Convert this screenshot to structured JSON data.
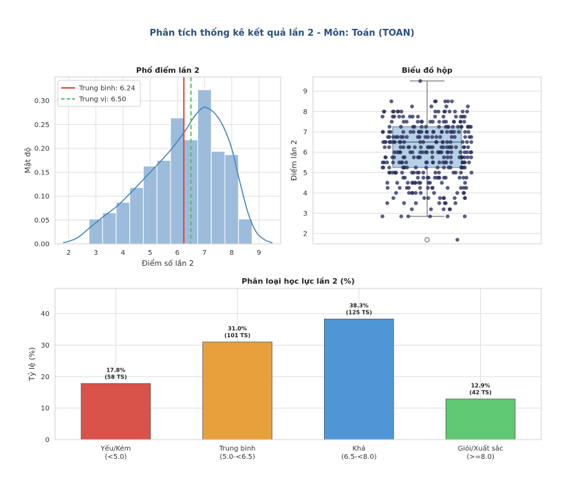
{
  "suptitle": "Phân tích thống kê kết quả lần 2 - Môn: Toán (TOAN)",
  "chart_data": [
    {
      "type": "bar",
      "subtype": "histogram-kde",
      "title": "Phổ điểm lần 2",
      "xlabel": "Điểm số lần 2",
      "ylabel": "Mật độ",
      "xlim": [
        1.5,
        9.8
      ],
      "ylim": [
        0,
        0.35
      ],
      "xticks": [
        2,
        3,
        4,
        5,
        6,
        7,
        8,
        9
      ],
      "yticks": [
        0.0,
        0.05,
        0.1,
        0.15,
        0.2,
        0.25,
        0.3
      ],
      "bin_edges": [
        2.75,
        3.25,
        3.75,
        4.25,
        4.75,
        5.25,
        5.75,
        6.25,
        6.75,
        7.25,
        7.75,
        8.25,
        8.75
      ],
      "values": [
        0.052,
        0.065,
        0.087,
        0.118,
        0.163,
        0.175,
        0.264,
        0.218,
        0.323,
        0.194,
        0.187,
        0.052
      ],
      "bar_color": "#9dbcdb",
      "kde": {
        "x": [
          1.8,
          2.3,
          2.8,
          3.3,
          3.8,
          4.3,
          4.8,
          5.3,
          5.8,
          6.3,
          6.6,
          6.9,
          7.1,
          7.4,
          7.7,
          8.0,
          8.3,
          8.6,
          8.9,
          9.2,
          9.5
        ],
        "y": [
          0.002,
          0.012,
          0.035,
          0.058,
          0.08,
          0.108,
          0.138,
          0.168,
          0.2,
          0.238,
          0.265,
          0.284,
          0.285,
          0.272,
          0.245,
          0.2,
          0.13,
          0.065,
          0.025,
          0.009,
          0.002
        ],
        "color": "#4a86b5"
      },
      "mean": {
        "value": 6.24,
        "label": "Trung bình: 6.24",
        "color": "#d9453a"
      },
      "median": {
        "value": 6.5,
        "label": "Trung vị: 6.50",
        "color": "#4cc36a"
      },
      "grid": true,
      "legend_position": "top-left"
    },
    {
      "type": "scatter",
      "subtype": "box-with-strip",
      "title": "Biểu đồ hộp",
      "ylabel": "Điểm lần 2",
      "ylim": [
        1.5,
        9.7
      ],
      "yticks": [
        2,
        3,
        4,
        5,
        6,
        7,
        8,
        9
      ],
      "box": {
        "q1": 5.25,
        "median": 6.5,
        "q3": 7.25,
        "whisker_low": 2.85,
        "whisker_high": 9.5,
        "outliers": [
          1.7
        ]
      },
      "box_color": "#a9c9e0",
      "point_color": "#2a2f5e",
      "grid": true
    },
    {
      "type": "bar",
      "title": "Phân loại học lực lần 2 (%)",
      "ylabel": "Tỷ lệ (%)",
      "ylim": [
        0,
        48
      ],
      "yticks": [
        0,
        10,
        20,
        30,
        40
      ],
      "categories": [
        "Yếu/Kém\n(<5.0)",
        "Trung bình\n(5.0-<6.5)",
        "Khá\n(6.5-<8.0)",
        "Giỏi/Xuất sắc\n(>=8.0)"
      ],
      "values": [
        17.8,
        31.0,
        38.3,
        12.9
      ],
      "labels": [
        "17.8%\n(58 TS)",
        "31.0%\n(101 TS)",
        "38.3%\n(125 TS)",
        "12.9%\n(42 TS)"
      ],
      "colors": [
        "#d9534a",
        "#e8a03c",
        "#4f96d6",
        "#5fc872"
      ],
      "grid": true
    }
  ]
}
